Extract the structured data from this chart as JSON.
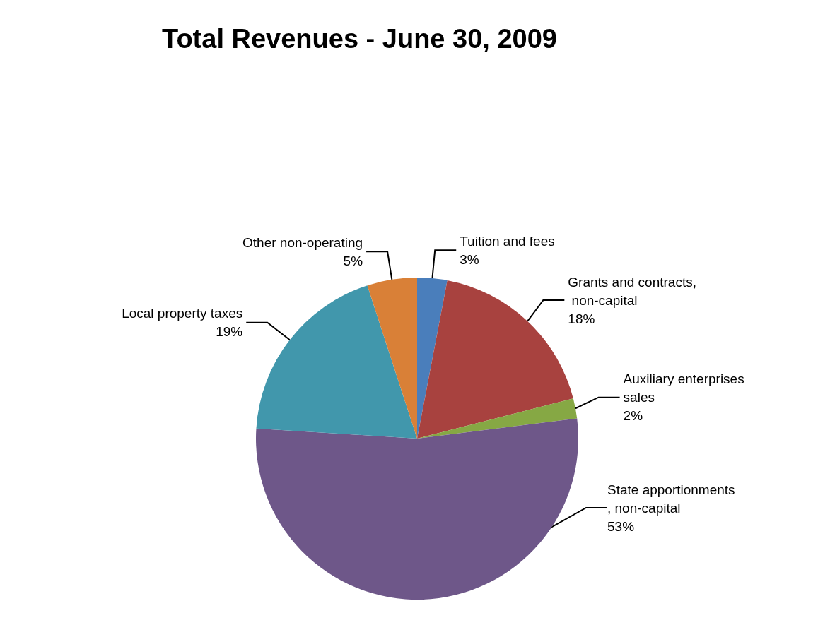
{
  "chart_data": {
    "type": "pie",
    "title": "Total Revenues - June 30, 2009",
    "categories": [
      "Tuition and fees",
      "Grants and contracts, non-capital",
      "Auxiliary enterprises sales",
      "State apportionments, non-capital",
      "Local property taxes",
      "Other non-operating"
    ],
    "values": [
      3,
      18,
      2,
      53,
      19,
      5
    ],
    "colors": [
      "#4a7ebb",
      "#a8423f",
      "#86a844",
      "#6e5789",
      "#4197ac",
      "#d98037"
    ],
    "value_labels": [
      "3%",
      "18%",
      "2%",
      "53%",
      "19%",
      "5%"
    ],
    "legend": false
  }
}
